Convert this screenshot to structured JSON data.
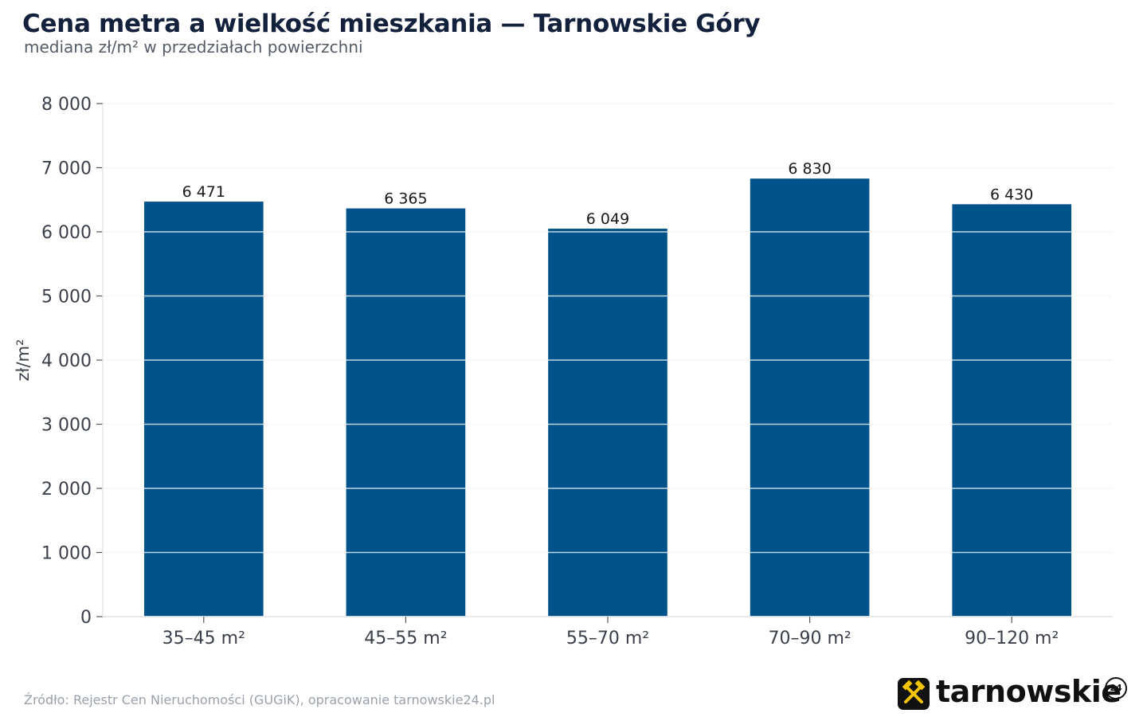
{
  "chart_data": {
    "type": "bar",
    "title": "Cena metra a wielkość mieszkania — Tarnowskie Góry",
    "subtitle": "mediana zł/m² w przedziałach powierzchni",
    "ylabel": "zł/m²",
    "xlabel": "",
    "categories": [
      "35–45 m²",
      "45–55 m²",
      "55–70 m²",
      "70–90 m²",
      "90–120 m²"
    ],
    "values": [
      6471,
      6365,
      6049,
      6830,
      6430
    ],
    "value_labels": [
      "6 471",
      "6 365",
      "6 049",
      "6 830",
      "6 430"
    ],
    "ylim": [
      0,
      8000
    ],
    "yticks": [
      0,
      1000,
      2000,
      3000,
      4000,
      5000,
      6000,
      7000,
      8000
    ],
    "ytick_labels": [
      "0",
      "1 000",
      "2 000",
      "3 000",
      "4 000",
      "5 000",
      "6 000",
      "7 000",
      "8 000"
    ],
    "grid": true,
    "bar_color": "#00538a"
  },
  "footer": {
    "source": "Źródło: Rejestr Cen Nieruchomości (GUGiK), opracowanie tarnowskie24.pl"
  },
  "logo": {
    "text": "tarnowskie",
    "badge_number": "24",
    "icon": "crossed-hammers-icon"
  }
}
